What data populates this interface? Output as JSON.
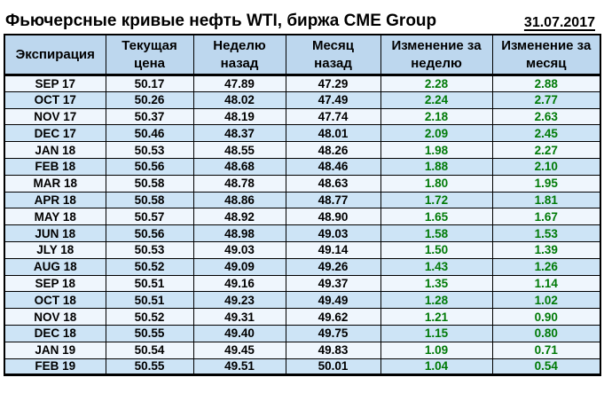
{
  "title": "Фьючерсные кривые нефть WTI, биржа CME Group",
  "date": "31.07.2017",
  "table": {
    "columns": [
      "Экспирация",
      "Текущая\nцена",
      "Неделю\nназад",
      "Месяц\nназад",
      "Изменение за\nнеделю",
      "Изменение за\nмесяц"
    ],
    "rows": [
      [
        "SEP 17",
        "50.17",
        "47.89",
        "47.29",
        "2.28",
        "2.88"
      ],
      [
        "OCT 17",
        "50.26",
        "48.02",
        "47.49",
        "2.24",
        "2.77"
      ],
      [
        "NOV 17",
        "50.37",
        "48.19",
        "47.74",
        "2.18",
        "2.63"
      ],
      [
        "DEC 17",
        "50.46",
        "48.37",
        "48.01",
        "2.09",
        "2.45"
      ],
      [
        "JAN 18",
        "50.53",
        "48.55",
        "48.26",
        "1.98",
        "2.27"
      ],
      [
        "FEB 18",
        "50.56",
        "48.68",
        "48.46",
        "1.88",
        "2.10"
      ],
      [
        "MAR 18",
        "50.58",
        "48.78",
        "48.63",
        "1.80",
        "1.95"
      ],
      [
        "APR 18",
        "50.58",
        "48.86",
        "48.77",
        "1.72",
        "1.81"
      ],
      [
        "MAY 18",
        "50.57",
        "48.92",
        "48.90",
        "1.65",
        "1.67"
      ],
      [
        "JUN 18",
        "50.56",
        "48.98",
        "49.03",
        "1.58",
        "1.53"
      ],
      [
        "JLY 18",
        "50.53",
        "49.03",
        "49.14",
        "1.50",
        "1.39"
      ],
      [
        "AUG 18",
        "50.52",
        "49.09",
        "49.26",
        "1.43",
        "1.26"
      ],
      [
        "SEP 18",
        "50.51",
        "49.16",
        "49.37",
        "1.35",
        "1.14"
      ],
      [
        "OCT 18",
        "50.51",
        "49.23",
        "49.49",
        "1.28",
        "1.02"
      ],
      [
        "NOV 18",
        "50.52",
        "49.31",
        "49.62",
        "1.21",
        "0.90"
      ],
      [
        "DEC 18",
        "50.55",
        "49.40",
        "49.75",
        "1.15",
        "0.80"
      ],
      [
        "JAN 19",
        "50.54",
        "49.45",
        "49.83",
        "1.09",
        "0.71"
      ],
      [
        "FEB 19",
        "50.55",
        "49.51",
        "50.01",
        "1.04",
        "0.54"
      ]
    ]
  },
  "colors": {
    "header_bg": "#bdd7ee",
    "row_blue_bg": "#cde4f6",
    "row_light_bg": "#eff6fd",
    "change_text_green": "#007a07",
    "border": "#000000",
    "page_bg": "#ffffff"
  }
}
